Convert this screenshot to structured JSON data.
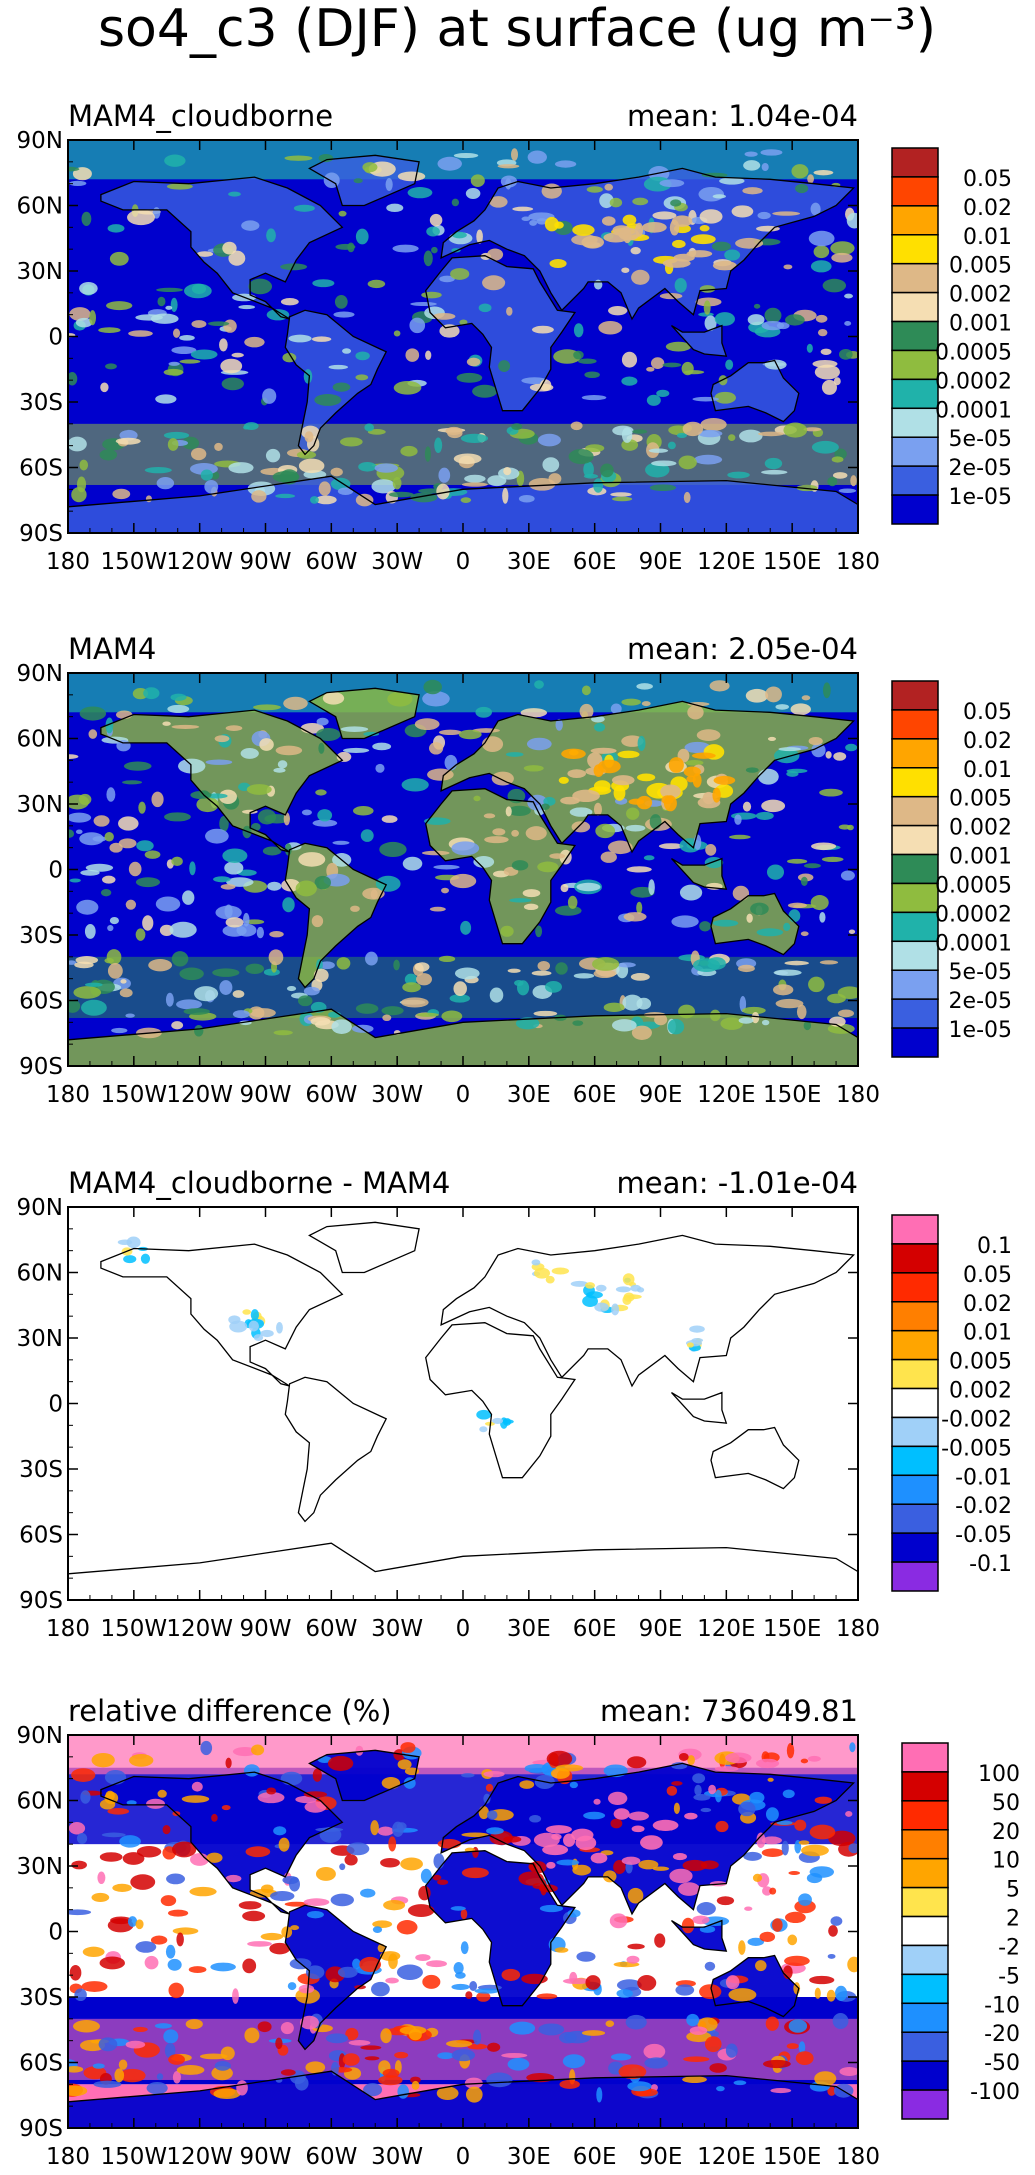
{
  "figure": {
    "title": "so4_c3 (DJF) at surface (ug m⁻³)"
  },
  "axes": {
    "x_ticks": [
      "180",
      "150W",
      "120W",
      "90W",
      "60W",
      "30W",
      "0",
      "30E",
      "60E",
      "90E",
      "120E",
      "150E",
      "180"
    ],
    "y_ticks": [
      "90N",
      "60N",
      "30N",
      "0",
      "30S",
      "60S",
      "90S"
    ]
  },
  "colors": {
    "abs_scale": [
      "#0000cd",
      "#3a5fe0",
      "#7aa0f0",
      "#b0e0e6",
      "#20b2aa",
      "#8fbc3f",
      "#2e8b57",
      "#f5deb3",
      "#deb887",
      "#ffe000",
      "#ffa500",
      "#ff4500",
      "#b22222"
    ],
    "diff_scale": [
      "#8a2be2",
      "#0000cd",
      "#3a5fe0",
      "#1e90ff",
      "#00bfff",
      "#a0d0f8",
      "#ffffff",
      "#ffe44d",
      "#ffa500",
      "#ff7f00",
      "#ff2a00",
      "#d40000",
      "#ff6eb4"
    ],
    "rel_scale": [
      "#8a2be2",
      "#0000cd",
      "#3a5fe0",
      "#1e90ff",
      "#00bfff",
      "#a0d0f8",
      "#ffffff",
      "#ffe44d",
      "#ffa500",
      "#ff7f00",
      "#ff2a00",
      "#d40000",
      "#ff6eb4"
    ]
  },
  "chart_data": [
    {
      "type": "heatmap",
      "title": "MAM4_cloudborne",
      "mean_label": "mean: 1.04e-04",
      "mean": 0.000104,
      "colorbar_labels": [
        "1e-05",
        "2e-05",
        "5e-05",
        "0.0001",
        "0.0002",
        "0.0005",
        "0.001",
        "0.002",
        "0.005",
        "0.01",
        "0.02",
        "0.05"
      ],
      "palette": "abs_scale",
      "xlim": [
        -180,
        180
      ],
      "ylim": [
        -90,
        90
      ]
    },
    {
      "type": "heatmap",
      "title": "MAM4",
      "mean_label": "mean: 2.05e-04",
      "mean": 0.000205,
      "colorbar_labels": [
        "1e-05",
        "2e-05",
        "5e-05",
        "0.0001",
        "0.0002",
        "0.0005",
        "0.001",
        "0.002",
        "0.005",
        "0.01",
        "0.02",
        "0.05"
      ],
      "palette": "abs_scale",
      "xlim": [
        -180,
        180
      ],
      "ylim": [
        -90,
        90
      ]
    },
    {
      "type": "heatmap",
      "title": "MAM4_cloudborne - MAM4",
      "mean_label": "mean: -1.01e-04",
      "mean": -0.000101,
      "colorbar_labels": [
        "-0.1",
        "-0.05",
        "-0.02",
        "-0.01",
        "-0.005",
        "-0.002",
        "0.002",
        "0.005",
        "0.01",
        "0.02",
        "0.05",
        "0.1"
      ],
      "palette": "diff_scale",
      "xlim": [
        -180,
        180
      ],
      "ylim": [
        -90,
        90
      ]
    },
    {
      "type": "heatmap",
      "title": "relative difference (%)",
      "mean_label": "mean: 736049.81",
      "mean": 736049.81,
      "colorbar_labels": [
        "-100",
        "-50",
        "-20",
        "-10",
        "-5",
        "-2",
        "2",
        "5",
        "10",
        "20",
        "50",
        "100"
      ],
      "palette": "rel_scale",
      "xlim": [
        -180,
        180
      ],
      "ylim": [
        -90,
        90
      ]
    }
  ]
}
